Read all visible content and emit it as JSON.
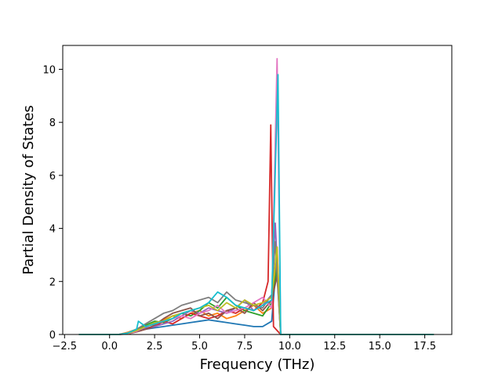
{
  "chart_data": {
    "type": "line",
    "title": "",
    "xlabel": "Frequency (THz)",
    "ylabel": "Partial Density of States",
    "xlim": [
      -2.6,
      19.0
    ],
    "ylim": [
      0,
      10.9
    ],
    "x_ticks": [
      -2.5,
      0.0,
      2.5,
      5.0,
      7.5,
      10.0,
      12.5,
      15.0,
      17.5
    ],
    "x_tick_labels": [
      "−2.5",
      "0.0",
      "2.5",
      "5.0",
      "7.5",
      "10.0",
      "12.5",
      "15.0",
      "17.5"
    ],
    "y_ticks": [
      0,
      2,
      4,
      6,
      8,
      10
    ],
    "y_tick_labels": [
      "0",
      "2",
      "4",
      "6",
      "8",
      "10"
    ],
    "grid": false,
    "legend": "none",
    "x_range_plotted": [
      -1.7,
      18.0
    ],
    "series": [
      {
        "color": "#1f77b4",
        "x": [
          -1.7,
          0.5,
          1.0,
          1.5,
          2.0,
          2.5,
          3.0,
          3.5,
          4.0,
          4.5,
          5.0,
          5.5,
          6.0,
          6.5,
          7.0,
          7.5,
          8.0,
          8.5,
          9.0,
          9.3,
          9.5,
          10.0,
          18.0
        ],
        "values": [
          0,
          0,
          0.05,
          0.12,
          0.2,
          0.25,
          0.3,
          0.35,
          0.4,
          0.45,
          0.5,
          0.55,
          0.5,
          0.45,
          0.4,
          0.35,
          0.3,
          0.3,
          0.5,
          3.0,
          0,
          0,
          0
        ]
      },
      {
        "color": "#ff7f0e",
        "x": [
          -1.7,
          0.5,
          1.0,
          1.5,
          2.0,
          2.5,
          3.0,
          3.5,
          4.0,
          4.5,
          5.0,
          5.5,
          6.0,
          6.5,
          7.0,
          7.5,
          8.0,
          8.5,
          9.0,
          9.3,
          9.5,
          10.0,
          18.0
        ],
        "values": [
          0,
          0,
          0.08,
          0.2,
          0.3,
          0.4,
          0.55,
          0.7,
          0.6,
          0.8,
          0.9,
          0.7,
          0.8,
          0.6,
          0.7,
          0.9,
          1.1,
          0.8,
          1.0,
          3.3,
          0,
          0,
          0
        ]
      },
      {
        "color": "#2ca02c",
        "x": [
          -1.7,
          0.5,
          1.0,
          1.5,
          2.0,
          2.5,
          3.0,
          3.5,
          4.0,
          4.5,
          5.0,
          5.5,
          6.0,
          6.5,
          7.0,
          7.5,
          8.0,
          8.5,
          9.0,
          9.3,
          9.5,
          10.0,
          18.0
        ],
        "values": [
          0,
          0,
          0.04,
          0.15,
          0.35,
          0.5,
          0.45,
          0.6,
          0.8,
          0.7,
          0.9,
          1.2,
          1.0,
          1.4,
          1.1,
          0.9,
          0.8,
          0.7,
          1.2,
          2.5,
          0,
          0,
          0
        ]
      },
      {
        "color": "#d62728",
        "x": [
          -1.7,
          0.5,
          1.0,
          1.5,
          2.0,
          2.5,
          3.0,
          3.5,
          4.0,
          4.5,
          5.0,
          5.5,
          6.0,
          6.5,
          7.0,
          7.5,
          8.0,
          8.5,
          8.8,
          8.95,
          9.1,
          9.5,
          10.0,
          18.0
        ],
        "values": [
          0,
          0,
          0.03,
          0.1,
          0.2,
          0.3,
          0.5,
          0.4,
          0.6,
          0.8,
          0.7,
          0.6,
          0.7,
          0.9,
          0.8,
          1.0,
          0.9,
          1.2,
          2.0,
          7.9,
          0.3,
          0,
          0,
          0
        ]
      },
      {
        "color": "#9467bd",
        "x": [
          -1.7,
          0.5,
          1.0,
          1.5,
          2.0,
          2.5,
          3.0,
          3.5,
          4.0,
          4.5,
          5.0,
          5.5,
          6.0,
          6.5,
          7.0,
          7.5,
          8.0,
          8.5,
          9.0,
          9.2,
          9.5,
          10.0,
          18.0
        ],
        "values": [
          0,
          0,
          0.05,
          0.1,
          0.25,
          0.3,
          0.4,
          0.5,
          0.7,
          0.9,
          0.8,
          1.0,
          0.9,
          0.8,
          1.0,
          1.3,
          0.9,
          1.1,
          1.5,
          4.2,
          0,
          0,
          0
        ]
      },
      {
        "color": "#8c564b",
        "x": [
          -1.7,
          0.5,
          1.0,
          1.5,
          2.0,
          2.5,
          3.0,
          3.5,
          4.0,
          4.5,
          5.0,
          5.5,
          6.0,
          6.5,
          7.0,
          7.5,
          8.0,
          8.5,
          9.0,
          9.3,
          9.5,
          10.0,
          18.0
        ],
        "values": [
          0,
          0,
          0.02,
          0.1,
          0.2,
          0.35,
          0.6,
          0.8,
          0.9,
          1.0,
          0.7,
          0.8,
          0.6,
          0.9,
          1.0,
          0.8,
          1.2,
          0.9,
          1.3,
          2.2,
          0,
          0,
          0
        ]
      },
      {
        "color": "#e377c2",
        "x": [
          -1.7,
          0.5,
          1.0,
          1.5,
          2.0,
          2.5,
          3.0,
          3.5,
          4.0,
          4.5,
          5.0,
          5.5,
          6.0,
          6.5,
          7.0,
          7.5,
          8.0,
          8.5,
          9.0,
          9.3,
          9.5,
          10.0,
          18.0
        ],
        "values": [
          0,
          0,
          0.03,
          0.12,
          0.3,
          0.4,
          0.5,
          0.6,
          0.7,
          0.6,
          0.8,
          0.9,
          1.1,
          0.8,
          0.9,
          1.0,
          1.2,
          1.4,
          1.0,
          10.4,
          0,
          0,
          0
        ]
      },
      {
        "color": "#7f7f7f",
        "x": [
          -1.7,
          0.5,
          1.0,
          1.5,
          2.0,
          2.5,
          3.0,
          3.5,
          4.0,
          4.5,
          5.0,
          5.5,
          6.0,
          6.5,
          7.0,
          7.5,
          8.0,
          8.5,
          9.0,
          9.2,
          9.5,
          10.0,
          18.0
        ],
        "values": [
          0,
          0,
          0.05,
          0.2,
          0.4,
          0.6,
          0.8,
          0.9,
          1.1,
          1.2,
          1.3,
          1.4,
          1.2,
          1.6,
          1.3,
          1.2,
          1.1,
          1.0,
          1.5,
          3.5,
          0,
          0,
          0
        ]
      },
      {
        "color": "#bcbd22",
        "x": [
          -1.7,
          0.5,
          1.0,
          1.5,
          2.0,
          2.5,
          3.0,
          3.5,
          4.0,
          4.5,
          5.0,
          5.5,
          6.0,
          6.5,
          7.0,
          7.5,
          8.0,
          8.5,
          9.0,
          9.3,
          9.5,
          10.0,
          18.0
        ],
        "values": [
          0,
          0,
          0.04,
          0.15,
          0.3,
          0.45,
          0.5,
          0.7,
          0.8,
          0.9,
          1.0,
          1.1,
          0.9,
          1.2,
          1.0,
          1.3,
          1.1,
          1.2,
          1.4,
          3.3,
          0,
          0,
          0
        ]
      },
      {
        "color": "#17becf",
        "x": [
          -1.7,
          0.5,
          1.0,
          1.5,
          1.6,
          2.0,
          2.5,
          3.0,
          3.5,
          4.0,
          4.5,
          5.0,
          5.5,
          6.0,
          6.5,
          7.0,
          7.5,
          8.0,
          8.5,
          9.0,
          9.35,
          9.5,
          10.0,
          18.0
        ],
        "values": [
          0,
          0,
          0.05,
          0.2,
          0.5,
          0.3,
          0.4,
          0.5,
          0.6,
          0.8,
          0.9,
          1.0,
          1.2,
          1.6,
          1.4,
          1.1,
          1.0,
          0.9,
          1.1,
          1.3,
          9.8,
          0,
          0,
          0
        ]
      }
    ]
  }
}
